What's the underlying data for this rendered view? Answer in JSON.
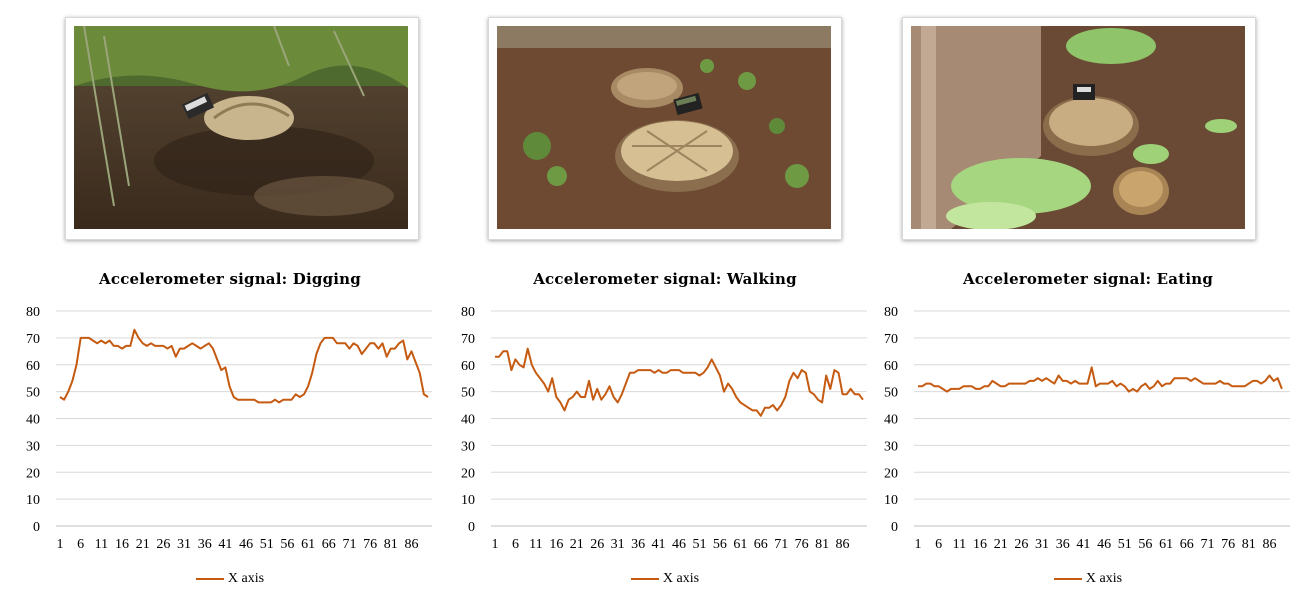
{
  "colors": {
    "series": "#c55a11",
    "grid": "#d9d9d9",
    "axis": "#bfbfbf"
  },
  "photos": [
    {
      "name": "tortoise-digging-photo"
    },
    {
      "name": "tortoises-walking-photo"
    },
    {
      "name": "tortoises-eating-photo"
    }
  ],
  "chart_data": [
    {
      "type": "line",
      "title": "Accelerometer signal: Digging",
      "ylim": [
        0,
        80
      ],
      "yticks": [
        "0",
        "10",
        "20",
        "30",
        "40",
        "50",
        "60",
        "70",
        "80"
      ],
      "xticks": [
        "1",
        "6",
        "11",
        "16",
        "21",
        "26",
        "31",
        "36",
        "41",
        "46",
        "51",
        "56",
        "61",
        "66",
        "71",
        "76",
        "81",
        "86"
      ],
      "grid": true,
      "legend_position": "bottom",
      "series": [
        {
          "name": "X axis",
          "values": [
            48,
            47,
            50,
            54,
            60,
            70,
            70,
            70,
            69,
            68,
            69,
            68,
            69,
            67,
            67,
            66,
            67,
            67,
            73,
            70,
            68,
            67,
            68,
            67,
            67,
            67,
            66,
            67,
            63,
            66,
            66,
            67,
            68,
            67,
            66,
            67,
            68,
            66,
            62,
            58,
            59,
            52,
            48,
            47,
            47,
            47,
            47,
            47,
            46,
            46,
            46,
            46,
            47,
            46,
            47,
            47,
            47,
            49,
            48,
            49,
            52,
            57,
            64,
            68,
            70,
            70,
            70,
            68,
            68,
            68,
            66,
            68,
            67,
            64,
            66,
            68,
            68,
            66,
            68,
            63,
            66,
            66,
            68,
            69,
            62,
            65,
            61,
            57,
            49,
            48
          ]
        }
      ]
    },
    {
      "type": "line",
      "title": "Accelerometer signal: Walking",
      "ylim": [
        0,
        80
      ],
      "yticks": [
        "0",
        "10",
        "20",
        "30",
        "40",
        "50",
        "60",
        "70",
        "80"
      ],
      "xticks": [
        "1",
        "6",
        "11",
        "16",
        "21",
        "26",
        "31",
        "36",
        "41",
        "46",
        "51",
        "56",
        "61",
        "66",
        "71",
        "76",
        "81",
        "86"
      ],
      "grid": true,
      "legend_position": "bottom",
      "series": [
        {
          "name": "X axis",
          "values": [
            63,
            63,
            65,
            65,
            58,
            62,
            60,
            59,
            66,
            60,
            57,
            55,
            53,
            50,
            55,
            48,
            46,
            43,
            47,
            48,
            50,
            48,
            48,
            54,
            47,
            51,
            47,
            49,
            52,
            48,
            46,
            49,
            53,
            57,
            57,
            58,
            58,
            58,
            58,
            57,
            58,
            57,
            57,
            58,
            58,
            58,
            57,
            57,
            57,
            57,
            56,
            57,
            59,
            62,
            59,
            56,
            50,
            53,
            51,
            48,
            46,
            45,
            44,
            43,
            43,
            41,
            44,
            44,
            45,
            43,
            45,
            48,
            54,
            57,
            55,
            58,
            57,
            50,
            49,
            47,
            46,
            56,
            51,
            58,
            57,
            49,
            49,
            51,
            49,
            49,
            47
          ]
        }
      ]
    },
    {
      "type": "line",
      "title": "Accelerometer signal: Eating",
      "ylim": [
        0,
        80
      ],
      "yticks": [
        "0",
        "10",
        "20",
        "30",
        "40",
        "50",
        "60",
        "70",
        "80"
      ],
      "xticks": [
        "1",
        "6",
        "11",
        "16",
        "21",
        "26",
        "31",
        "36",
        "41",
        "46",
        "51",
        "56",
        "61",
        "66",
        "71",
        "76",
        "81",
        "86"
      ],
      "grid": true,
      "legend_position": "bottom",
      "series": [
        {
          "name": "X axis",
          "values": [
            52,
            52,
            53,
            53,
            52,
            52,
            51,
            50,
            51,
            51,
            51,
            52,
            52,
            52,
            51,
            51,
            52,
            52,
            54,
            53,
            52,
            52,
            53,
            53,
            53,
            53,
            53,
            54,
            54,
            55,
            54,
            55,
            54,
            53,
            56,
            54,
            54,
            53,
            54,
            53,
            53,
            53,
            59,
            52,
            53,
            53,
            53,
            54,
            52,
            53,
            52,
            50,
            51,
            50,
            52,
            53,
            51,
            52,
            54,
            52,
            53,
            53,
            55,
            55,
            55,
            55,
            54,
            55,
            54,
            53,
            53,
            53,
            53,
            54,
            53,
            53,
            52,
            52,
            52,
            52,
            53,
            54,
            54,
            53,
            54,
            56,
            54,
            55,
            51
          ]
        }
      ]
    }
  ]
}
